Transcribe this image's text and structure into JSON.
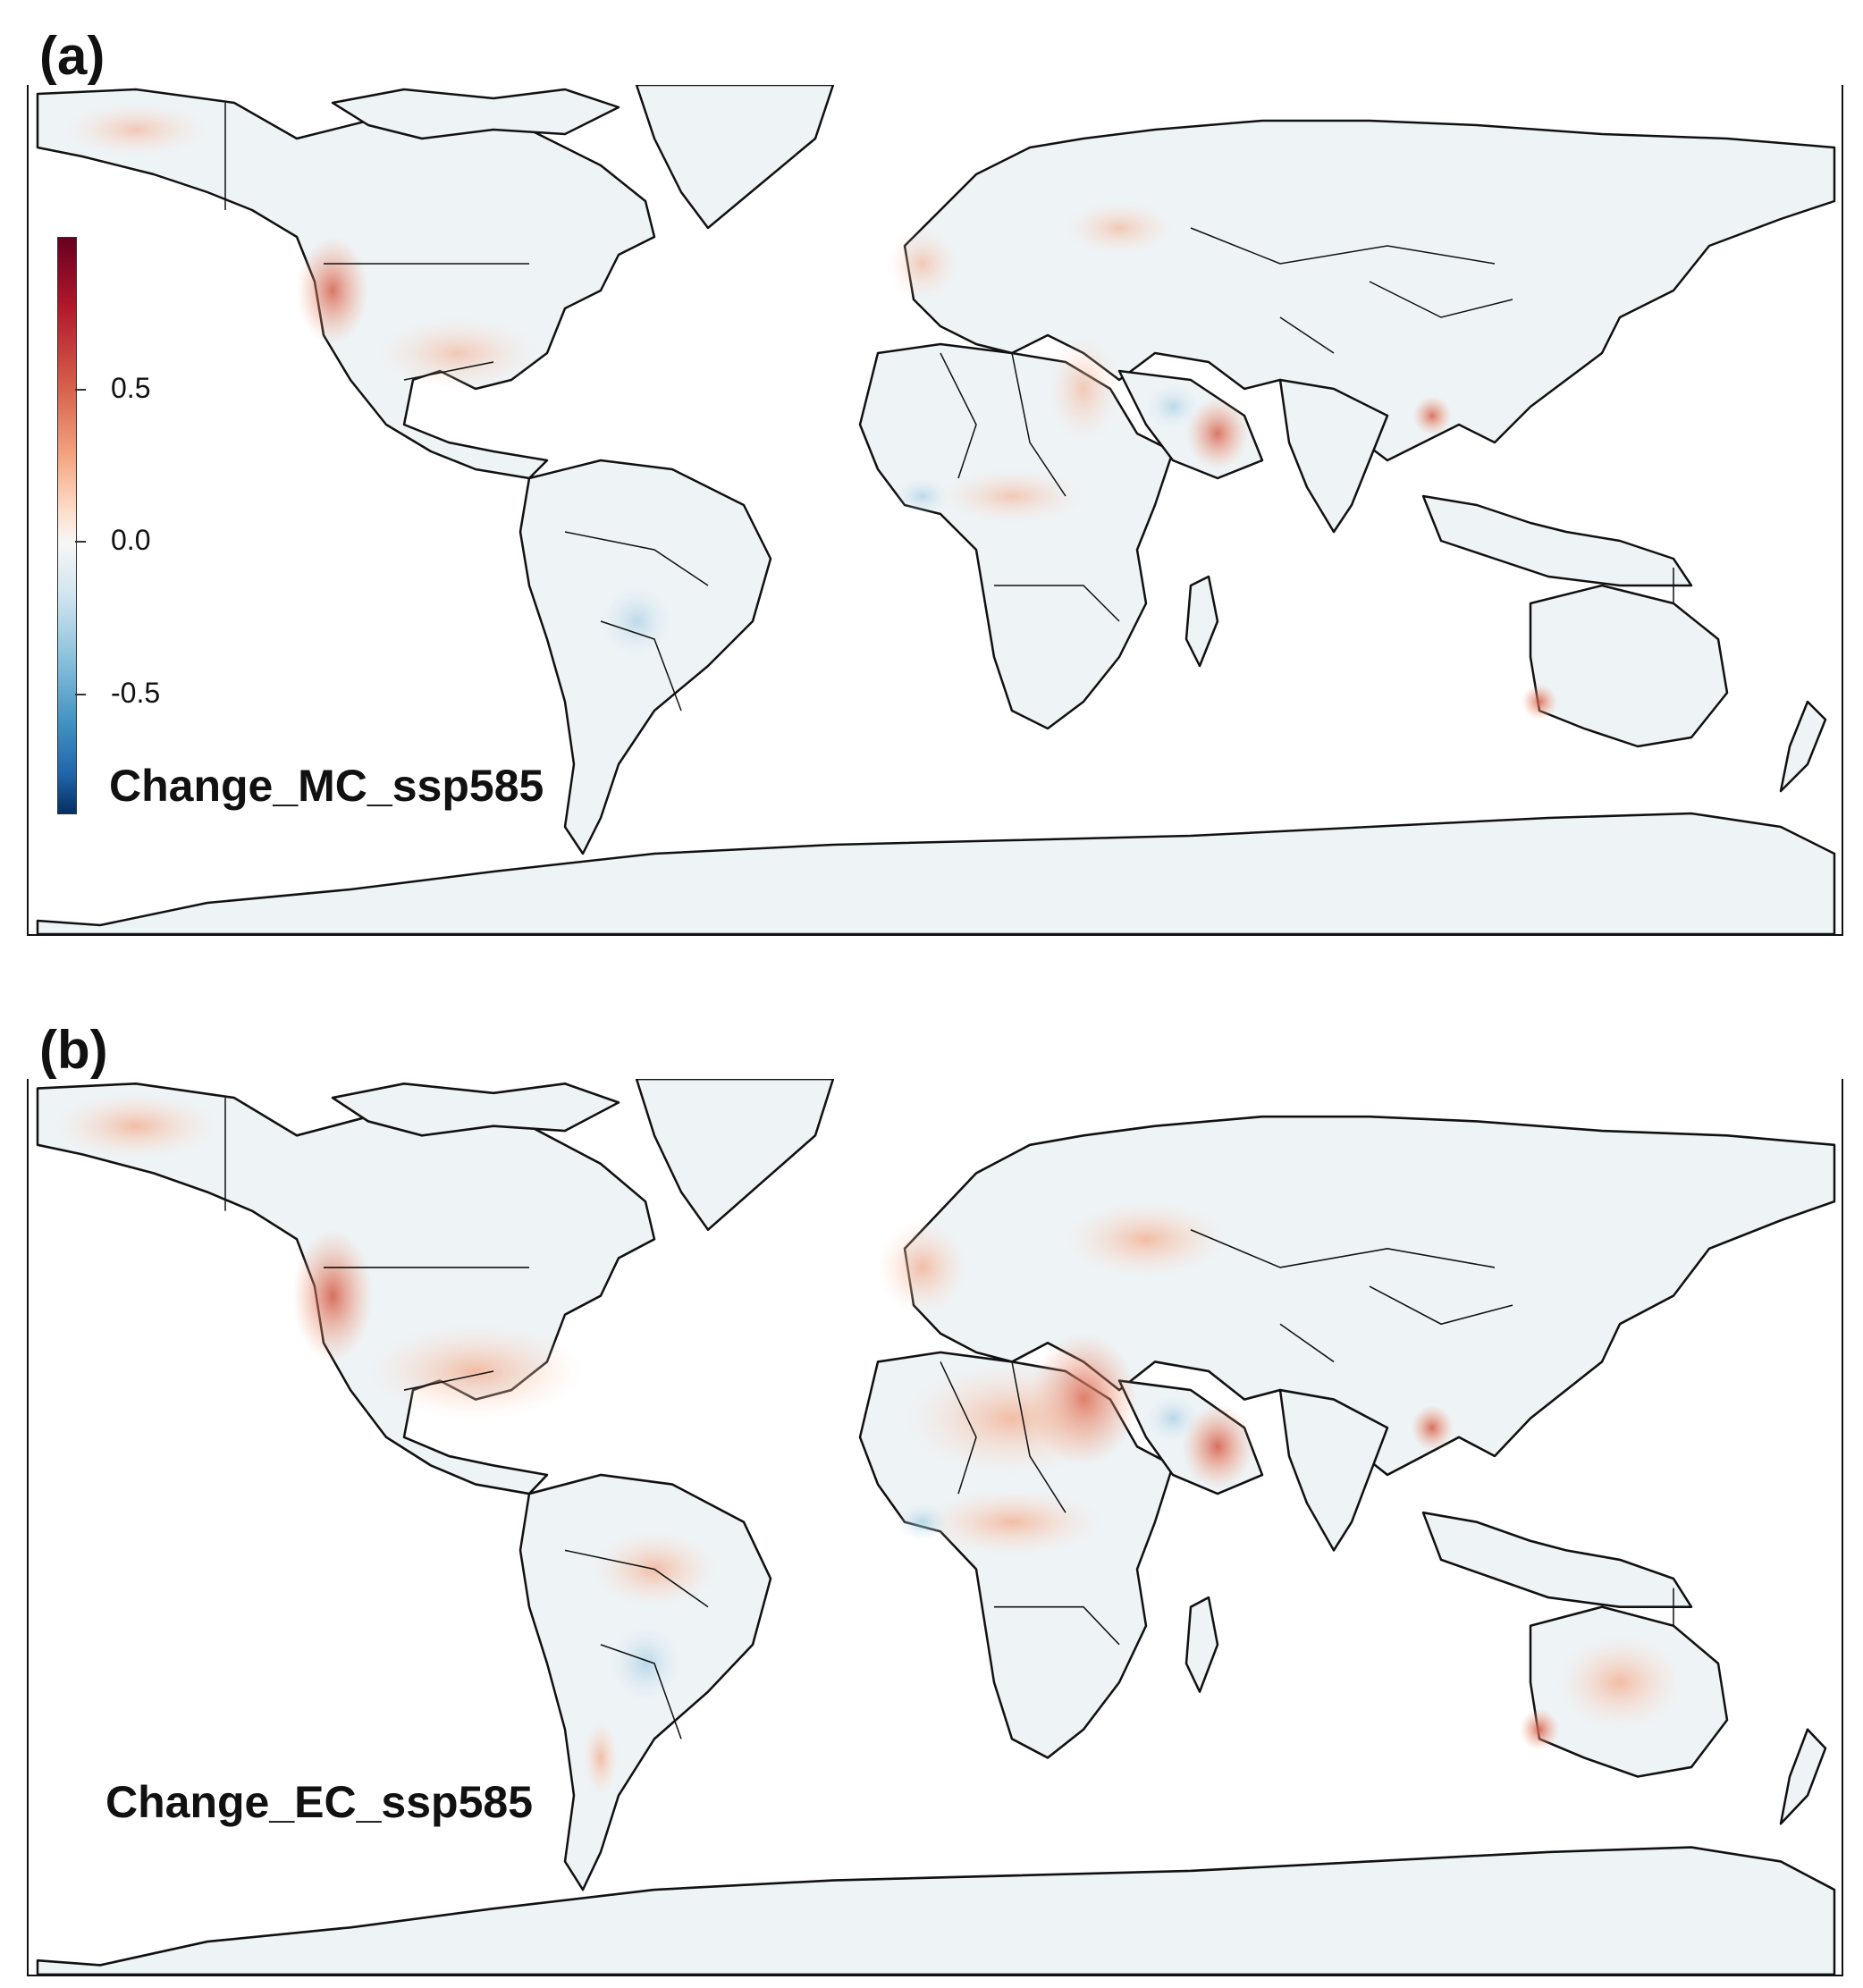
{
  "panels": [
    {
      "letter": "(a)",
      "title": "Change_MC_ssp585"
    },
    {
      "letter": "(b)",
      "title": "Change_EC_ssp585"
    }
  ],
  "colorbar": {
    "ticks": [
      "0.5",
      "0.0",
      "-0.5"
    ],
    "palette": [
      "#053061",
      "#2166ac",
      "#4393c3",
      "#92c5de",
      "#d1e5f0",
      "#f7f7f7",
      "#fddbc7",
      "#f4a582",
      "#d6604d",
      "#b2182b",
      "#67001f"
    ]
  },
  "colors": {
    "land_base": "#eef3f6",
    "positive": "#e8876d",
    "negative": "#8dbfdc",
    "coast": "#111111"
  }
}
